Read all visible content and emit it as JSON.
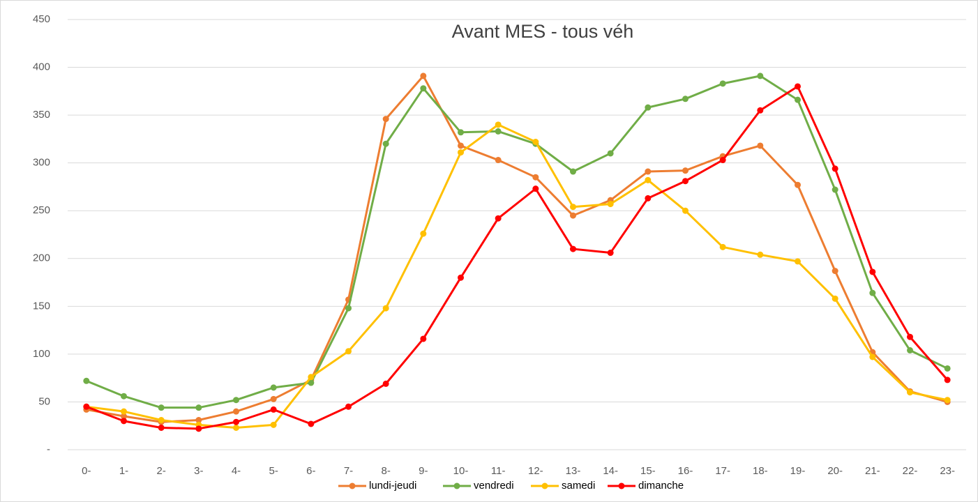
{
  "chart_data": {
    "type": "line",
    "title": "Avant MES - tous véh",
    "categories": [
      "0-",
      "1-",
      "2-",
      "3-",
      "4-",
      "5-",
      "6-",
      "7-",
      "8-",
      "9-",
      "10-",
      "11-",
      "12-",
      "13-",
      "14-",
      "15-",
      "16-",
      "17-",
      "18-",
      "19-",
      "20-",
      "21-",
      "22-",
      "23-"
    ],
    "series": [
      {
        "name": "lundi-jeudi",
        "color": "#ED7D31",
        "values": [
          42,
          35,
          29,
          31,
          40,
          53,
          73,
          157,
          346,
          391,
          318,
          303,
          285,
          245,
          261,
          291,
          292,
          307,
          318,
          277,
          187,
          102,
          61,
          50
        ]
      },
      {
        "name": "vendredi",
        "color": "#70AD47",
        "values": [
          72,
          56,
          44,
          44,
          52,
          65,
          70,
          148,
          320,
          378,
          332,
          333,
          320,
          291,
          310,
          358,
          367,
          383,
          391,
          366,
          272,
          164,
          104,
          85
        ]
      },
      {
        "name": "samedi",
        "color": "#FFC000",
        "values": [
          45,
          40,
          31,
          26,
          23,
          26,
          76,
          103,
          148,
          226,
          311,
          340,
          322,
          254,
          257,
          282,
          250,
          212,
          204,
          197,
          158,
          97,
          60,
          52
        ]
      },
      {
        "name": "dimanche",
        "color": "#FF0000",
        "values": [
          45,
          30,
          23,
          22,
          29,
          42,
          27,
          45,
          69,
          116,
          180,
          242,
          273,
          210,
          206,
          263,
          281,
          303,
          355,
          380,
          294,
          186,
          118,
          73
        ]
      }
    ],
    "ylim": [
      0,
      450
    ],
    "yticks": [
      {
        "value": 0,
        "label": "-"
      },
      50,
      100,
      150,
      200,
      250,
      300,
      350,
      400,
      450
    ],
    "grid": true,
    "legend": "bottom"
  }
}
